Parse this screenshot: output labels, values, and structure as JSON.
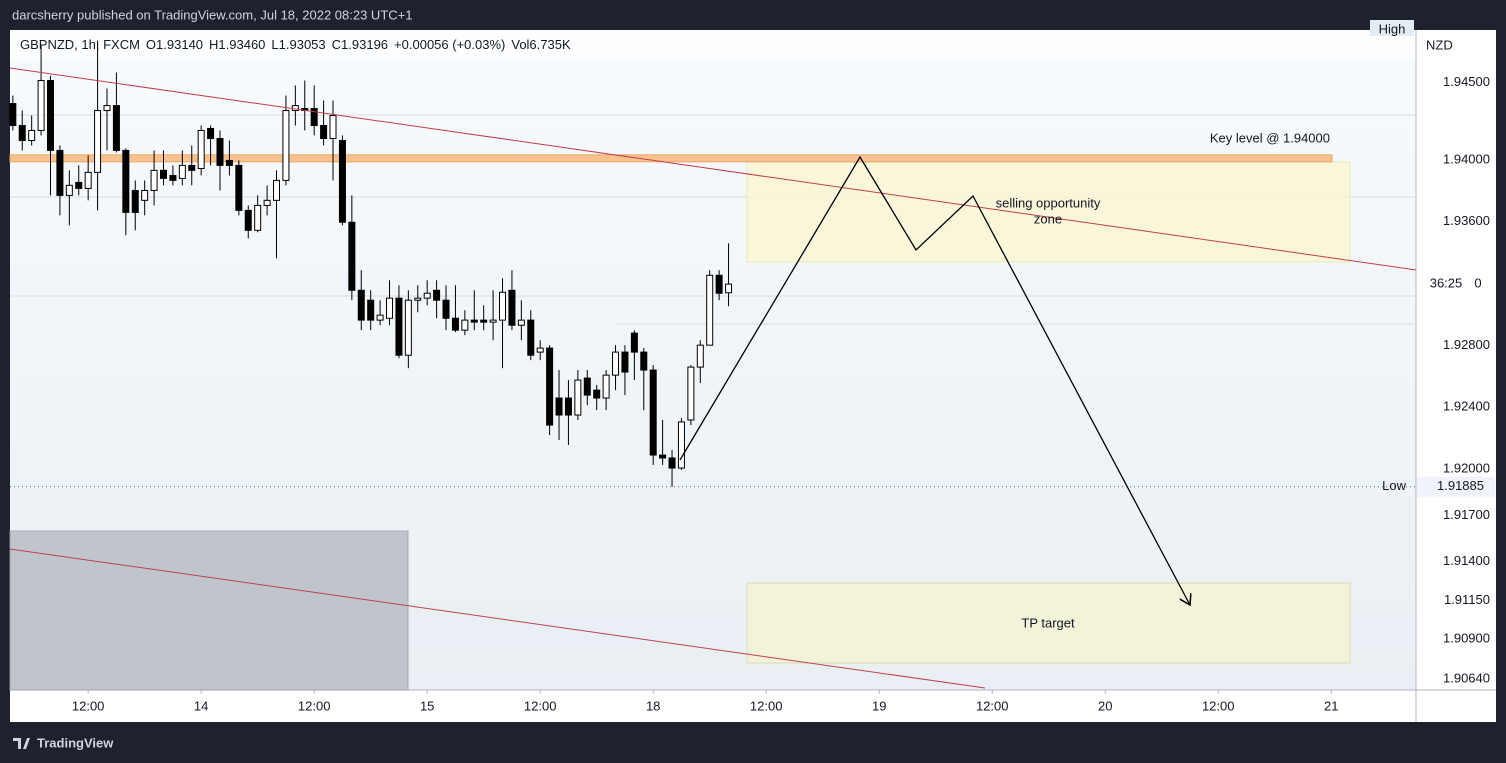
{
  "header": {
    "publisher": "darcsherry published on TradingView.com, Jul 18, 2022 08:23 UTC+1"
  },
  "chart_data": {
    "type": "candlestick",
    "symbol": "GBPNZD, 1h, FXCM",
    "legend": {
      "open": "O1.93140",
      "high": "H1.93460",
      "low": "L1.93053",
      "close": "C1.93196",
      "change": "+0.00056 (+0.03%)",
      "volume": "Vol6.735K"
    },
    "currency": "NZD",
    "up_color": "#ffffff",
    "down_color": "#000000",
    "x": [
      -8,
      -7,
      -6,
      -5,
      -4,
      -3,
      -2,
      -1,
      0,
      1,
      2,
      3,
      4,
      5,
      6,
      7,
      8,
      9,
      10,
      11,
      12,
      13,
      14,
      15,
      16,
      17,
      18,
      19,
      20,
      21,
      22,
      23,
      24,
      25,
      26,
      27,
      28,
      29,
      30,
      31,
      32,
      33,
      34,
      35,
      36,
      37,
      38,
      39,
      40,
      41,
      42,
      43,
      44,
      45,
      46,
      47,
      48,
      49,
      50,
      51,
      52,
      53,
      54,
      55,
      56,
      57,
      58,
      59,
      60,
      61,
      62,
      63,
      64,
      65,
      66,
      67,
      68
    ],
    "open": [
      1.94364,
      1.94222,
      1.94125,
      1.9419,
      1.94513,
      1.94061,
      1.9377,
      1.93854,
      1.93815,
      1.93919,
      1.94319,
      1.94351,
      1.94061,
      1.93802,
      1.93738,
      1.93802,
      1.93932,
      1.93899,
      1.9388,
      1.93964,
      1.93944,
      1.94203,
      1.94138,
      1.93996,
      1.93964,
      1.93673,
      1.93544,
      1.93705,
      1.93738,
      1.93867,
      1.94319,
      1.94332,
      1.94332,
      1.94222,
      1.94138,
      1.94125,
      1.93596,
      1.93156,
      1.93092,
      1.92963,
      1.92975,
      1.93105,
      1.92736,
      1.93092,
      1.93105,
      1.93156,
      1.93092,
      1.92975,
      1.92898,
      1.92963,
      1.92963,
      1.9295,
      1.92963,
      1.93156,
      1.9293,
      1.92963,
      1.92756,
      1.92782,
      1.92459,
      1.92459,
      1.92349,
      1.92588,
      1.9251,
      1.92459,
      1.92607,
      1.92756,
      1.92879,
      1.92756,
      1.9264,
      1.9209,
      1.92071,
      1.92006,
      1.92317,
      1.92659,
      1.92801,
      1.93253,
      1.9314
    ],
    "high": [
      1.94416,
      1.94319,
      1.94287,
      1.94739,
      1.94545,
      1.94093,
      1.93932,
      1.93964,
      1.94028,
      1.94771,
      1.94461,
      1.94565,
      1.94074,
      1.93867,
      1.93867,
      1.94061,
      1.94061,
      1.93964,
      1.94061,
      1.94093,
      1.94222,
      1.94222,
      1.9419,
      1.94125,
      1.93996,
      1.93705,
      1.9377,
      1.93835,
      1.93932,
      1.94416,
      1.94481,
      1.94513,
      1.94481,
      1.94384,
      1.94384,
      1.94158,
      1.9377,
      1.93286,
      1.93156,
      1.93092,
      1.93221,
      1.93189,
      1.93156,
      1.93189,
      1.93221,
      1.93221,
      1.93189,
      1.93189,
      1.93027,
      1.93156,
      1.93059,
      1.93156,
      1.93234,
      1.93286,
      1.93092,
      1.93027,
      1.92833,
      1.92801,
      1.9264,
      1.92575,
      1.9264,
      1.9264,
      1.92543,
      1.9264,
      1.92801,
      1.92801,
      1.92898,
      1.92782,
      1.92672,
      1.92317,
      1.92123,
      1.92329,
      1.92672,
      1.92833,
      1.93286,
      1.93286,
      1.9346
    ],
    "low": [
      1.9419,
      1.94061,
      1.94093,
      1.94158,
      1.9377,
      1.93641,
      1.93576,
      1.9377,
      1.93738,
      1.93673,
      1.94061,
      1.94048,
      1.93512,
      1.93544,
      1.93641,
      1.93705,
      1.93835,
      1.93835,
      1.93835,
      1.93835,
      1.93899,
      1.93964,
      1.93802,
      1.93899,
      1.93641,
      1.93492,
      1.93531,
      1.93641,
      1.93363,
      1.93835,
      1.94222,
      1.9419,
      1.94158,
      1.94093,
      1.93867,
      1.93576,
      1.93092,
      1.92898,
      1.92898,
      1.9293,
      1.9293,
      1.92717,
      1.92652,
      1.93014,
      1.93059,
      1.92975,
      1.92898,
      1.92885,
      1.92866,
      1.92898,
      1.92898,
      1.92833,
      1.92652,
      1.92898,
      1.92833,
      1.92704,
      1.92704,
      1.9222,
      1.92187,
      1.92155,
      1.92317,
      1.92413,
      1.92381,
      1.92381,
      1.9251,
      1.92478,
      1.92575,
      1.92381,
      1.92026,
      1.92026,
      1.91885,
      1.91994,
      1.92284,
      1.92556,
      1.92801,
      1.93092,
      1.93053
    ],
    "close": [
      1.94222,
      1.94125,
      1.9419,
      1.94513,
      1.94061,
      1.9377,
      1.93835,
      1.93815,
      1.93919,
      1.94319,
      1.94351,
      1.94061,
      1.9366,
      1.9366,
      1.93802,
      1.93932,
      1.9388,
      1.93867,
      1.93964,
      1.93932,
      1.9419,
      1.94138,
      1.93964,
      1.93964,
      1.93673,
      1.93544,
      1.93705,
      1.93738,
      1.93867,
      1.94319,
      1.94351,
      1.94319,
      1.94222,
      1.94138,
      1.94287,
      1.93596,
      1.93156,
      1.92963,
      1.92963,
      1.92995,
      1.93105,
      1.92736,
      1.93092,
      1.93105,
      1.93137,
      1.93092,
      1.92975,
      1.92898,
      1.92963,
      1.9295,
      1.9295,
      1.92963,
      1.93143,
      1.9293,
      1.92963,
      1.92736,
      1.92782,
      1.92284,
      1.92349,
      1.92349,
      1.92575,
      1.92478,
      1.92459,
      1.92607,
      1.92756,
      1.92627,
      1.92756,
      1.9264,
      1.9209,
      1.92071,
      1.92006,
      1.92304,
      1.92659,
      1.92801,
      1.93253,
      1.93137,
      1.93196
    ],
    "xlim": [
      -8.3,
      141
    ],
    "xticks": [
      {
        "value": 0,
        "label": "12:00"
      },
      12,
      24,
      36,
      48,
      60,
      72,
      84,
      96,
      108,
      120,
      132
    ],
    "xtick_labels": [
      "12:00",
      "14",
      "12:00",
      "15",
      "12:00",
      "18",
      "12:00",
      "19",
      "12:00",
      "20",
      "12:00",
      "21"
    ],
    "ylim": [
      1.9057,
      1.9484
    ],
    "yticks": [
      {
        "value": 1.945,
        "label": "1.94500"
      },
      {
        "value": 1.94,
        "label": "1.94000"
      },
      {
        "value": 1.936,
        "label": "1.93600"
      },
      {
        "value": 1.928,
        "label": "1.92800"
      },
      {
        "value": 1.924,
        "label": "1.92400"
      },
      {
        "value": 1.92,
        "label": "1.92000"
      },
      {
        "value": 1.917,
        "label": "1.91700"
      },
      {
        "value": 1.914,
        "label": "1.91400"
      },
      {
        "value": 1.9115,
        "label": "1.91150"
      },
      {
        "value": 1.909,
        "label": "1.90900"
      },
      {
        "value": 1.9064,
        "label": "1.90640"
      }
    ],
    "grid": false,
    "key_level": {
      "value": 1.94,
      "label": "Key level @ 1.94000",
      "color": "#f7c28e"
    },
    "low_marker": {
      "label": "Low",
      "value": 1.91885
    },
    "high_marker": {
      "label": "High"
    },
    "countdown": [
      "36:25",
      "0"
    ],
    "annotations": {
      "sell_zone": [
        "selling opportunity",
        "zone"
      ],
      "tp_zone": "TP target"
    }
  },
  "footer": {
    "brand": "TradingView"
  }
}
